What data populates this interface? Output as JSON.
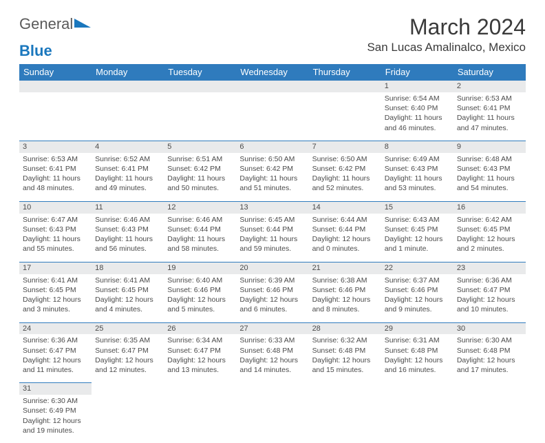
{
  "logo": {
    "text_general": "General",
    "text_blue": "Blue"
  },
  "title": "March 2024",
  "location": "San Lucas Amalinalco, Mexico",
  "colors": {
    "header_bg": "#2f7bbd",
    "header_fg": "#ffffff",
    "daynum_bg": "#e9eaeb",
    "rule": "#2f7bbd",
    "text": "#4a4a4a",
    "logo_blue": "#1a77bd"
  },
  "day_headers": [
    "Sunday",
    "Monday",
    "Tuesday",
    "Wednesday",
    "Thursday",
    "Friday",
    "Saturday"
  ],
  "weeks": [
    [
      null,
      null,
      null,
      null,
      null,
      {
        "n": "1",
        "sr": "Sunrise: 6:54 AM",
        "ss": "Sunset: 6:40 PM",
        "dl": "Daylight: 11 hours and 46 minutes."
      },
      {
        "n": "2",
        "sr": "Sunrise: 6:53 AM",
        "ss": "Sunset: 6:41 PM",
        "dl": "Daylight: 11 hours and 47 minutes."
      }
    ],
    [
      {
        "n": "3",
        "sr": "Sunrise: 6:53 AM",
        "ss": "Sunset: 6:41 PM",
        "dl": "Daylight: 11 hours and 48 minutes."
      },
      {
        "n": "4",
        "sr": "Sunrise: 6:52 AM",
        "ss": "Sunset: 6:41 PM",
        "dl": "Daylight: 11 hours and 49 minutes."
      },
      {
        "n": "5",
        "sr": "Sunrise: 6:51 AM",
        "ss": "Sunset: 6:42 PM",
        "dl": "Daylight: 11 hours and 50 minutes."
      },
      {
        "n": "6",
        "sr": "Sunrise: 6:50 AM",
        "ss": "Sunset: 6:42 PM",
        "dl": "Daylight: 11 hours and 51 minutes."
      },
      {
        "n": "7",
        "sr": "Sunrise: 6:50 AM",
        "ss": "Sunset: 6:42 PM",
        "dl": "Daylight: 11 hours and 52 minutes."
      },
      {
        "n": "8",
        "sr": "Sunrise: 6:49 AM",
        "ss": "Sunset: 6:43 PM",
        "dl": "Daylight: 11 hours and 53 minutes."
      },
      {
        "n": "9",
        "sr": "Sunrise: 6:48 AM",
        "ss": "Sunset: 6:43 PM",
        "dl": "Daylight: 11 hours and 54 minutes."
      }
    ],
    [
      {
        "n": "10",
        "sr": "Sunrise: 6:47 AM",
        "ss": "Sunset: 6:43 PM",
        "dl": "Daylight: 11 hours and 55 minutes."
      },
      {
        "n": "11",
        "sr": "Sunrise: 6:46 AM",
        "ss": "Sunset: 6:43 PM",
        "dl": "Daylight: 11 hours and 56 minutes."
      },
      {
        "n": "12",
        "sr": "Sunrise: 6:46 AM",
        "ss": "Sunset: 6:44 PM",
        "dl": "Daylight: 11 hours and 58 minutes."
      },
      {
        "n": "13",
        "sr": "Sunrise: 6:45 AM",
        "ss": "Sunset: 6:44 PM",
        "dl": "Daylight: 11 hours and 59 minutes."
      },
      {
        "n": "14",
        "sr": "Sunrise: 6:44 AM",
        "ss": "Sunset: 6:44 PM",
        "dl": "Daylight: 12 hours and 0 minutes."
      },
      {
        "n": "15",
        "sr": "Sunrise: 6:43 AM",
        "ss": "Sunset: 6:45 PM",
        "dl": "Daylight: 12 hours and 1 minute."
      },
      {
        "n": "16",
        "sr": "Sunrise: 6:42 AM",
        "ss": "Sunset: 6:45 PM",
        "dl": "Daylight: 12 hours and 2 minutes."
      }
    ],
    [
      {
        "n": "17",
        "sr": "Sunrise: 6:41 AM",
        "ss": "Sunset: 6:45 PM",
        "dl": "Daylight: 12 hours and 3 minutes."
      },
      {
        "n": "18",
        "sr": "Sunrise: 6:41 AM",
        "ss": "Sunset: 6:45 PM",
        "dl": "Daylight: 12 hours and 4 minutes."
      },
      {
        "n": "19",
        "sr": "Sunrise: 6:40 AM",
        "ss": "Sunset: 6:46 PM",
        "dl": "Daylight: 12 hours and 5 minutes."
      },
      {
        "n": "20",
        "sr": "Sunrise: 6:39 AM",
        "ss": "Sunset: 6:46 PM",
        "dl": "Daylight: 12 hours and 6 minutes."
      },
      {
        "n": "21",
        "sr": "Sunrise: 6:38 AM",
        "ss": "Sunset: 6:46 PM",
        "dl": "Daylight: 12 hours and 8 minutes."
      },
      {
        "n": "22",
        "sr": "Sunrise: 6:37 AM",
        "ss": "Sunset: 6:46 PM",
        "dl": "Daylight: 12 hours and 9 minutes."
      },
      {
        "n": "23",
        "sr": "Sunrise: 6:36 AM",
        "ss": "Sunset: 6:47 PM",
        "dl": "Daylight: 12 hours and 10 minutes."
      }
    ],
    [
      {
        "n": "24",
        "sr": "Sunrise: 6:36 AM",
        "ss": "Sunset: 6:47 PM",
        "dl": "Daylight: 12 hours and 11 minutes."
      },
      {
        "n": "25",
        "sr": "Sunrise: 6:35 AM",
        "ss": "Sunset: 6:47 PM",
        "dl": "Daylight: 12 hours and 12 minutes."
      },
      {
        "n": "26",
        "sr": "Sunrise: 6:34 AM",
        "ss": "Sunset: 6:47 PM",
        "dl": "Daylight: 12 hours and 13 minutes."
      },
      {
        "n": "27",
        "sr": "Sunrise: 6:33 AM",
        "ss": "Sunset: 6:48 PM",
        "dl": "Daylight: 12 hours and 14 minutes."
      },
      {
        "n": "28",
        "sr": "Sunrise: 6:32 AM",
        "ss": "Sunset: 6:48 PM",
        "dl": "Daylight: 12 hours and 15 minutes."
      },
      {
        "n": "29",
        "sr": "Sunrise: 6:31 AM",
        "ss": "Sunset: 6:48 PM",
        "dl": "Daylight: 12 hours and 16 minutes."
      },
      {
        "n": "30",
        "sr": "Sunrise: 6:30 AM",
        "ss": "Sunset: 6:48 PM",
        "dl": "Daylight: 12 hours and 17 minutes."
      }
    ],
    [
      {
        "n": "31",
        "sr": "Sunrise: 6:30 AM",
        "ss": "Sunset: 6:49 PM",
        "dl": "Daylight: 12 hours and 19 minutes."
      },
      null,
      null,
      null,
      null,
      null,
      null
    ]
  ]
}
